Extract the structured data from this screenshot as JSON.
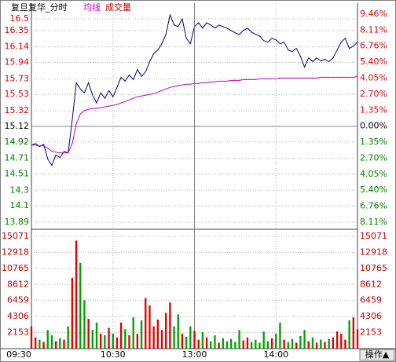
{
  "chart_data": [
    {
      "type": "line",
      "title": "复旦复华_分时",
      "x": [
        "09:30",
        "09:33",
        "09:36",
        "09:39",
        "09:42",
        "09:45",
        "09:48",
        "09:51",
        "09:54",
        "09:57",
        "10:00",
        "10:03",
        "10:06",
        "10:09",
        "10:12",
        "10:15",
        "10:18",
        "10:21",
        "10:24",
        "10:27",
        "10:30",
        "10:33",
        "10:36",
        "10:39",
        "10:42",
        "10:45",
        "10:48",
        "10:51",
        "10:54",
        "10:57",
        "11:00",
        "11:03",
        "11:06",
        "11:09",
        "11:12",
        "11:15",
        "11:18",
        "11:21",
        "11:24",
        "11:27",
        "13:00",
        "13:03",
        "13:06",
        "13:09",
        "13:12",
        "13:15",
        "13:18",
        "13:21",
        "13:24",
        "13:27",
        "13:30",
        "13:33",
        "13:36",
        "13:39",
        "13:42",
        "13:45",
        "13:48",
        "13:51",
        "13:54",
        "13:57",
        "14:00",
        "14:03",
        "14:06",
        "14:09",
        "14:12",
        "14:15",
        "14:18",
        "14:21",
        "14:24",
        "14:27",
        "14:30",
        "14:33",
        "14:36",
        "14:39",
        "14:42",
        "14:45",
        "14:48",
        "14:51",
        "14:54",
        "14:57",
        "15:00"
      ],
      "series": [
        {
          "color": "#000080",
          "values": [
            14.88,
            14.9,
            14.86,
            14.89,
            14.7,
            14.62,
            14.75,
            14.72,
            14.8,
            14.78,
            15.2,
            15.68,
            15.6,
            15.55,
            15.68,
            15.52,
            15.42,
            15.55,
            15.48,
            15.58,
            15.5,
            15.62,
            15.75,
            15.7,
            15.78,
            15.72,
            15.85,
            15.76,
            15.82,
            15.95,
            16.05,
            16.1,
            16.18,
            16.3,
            16.55,
            16.42,
            16.4,
            16.5,
            16.25,
            16.18,
            16.4,
            16.45,
            16.38,
            16.45,
            16.42,
            16.38,
            16.42,
            16.4,
            16.38,
            16.35,
            16.32,
            16.3,
            16.35,
            16.38,
            16.33,
            16.3,
            16.28,
            16.22,
            16.2,
            16.25,
            16.23,
            16.18,
            16.2,
            16.1,
            16.08,
            16.12,
            16.02,
            15.88,
            16.0,
            15.95,
            16.0,
            15.96,
            15.98,
            15.95,
            16.0,
            16.1,
            16.2,
            16.25,
            16.12,
            16.15,
            16.2
          ]
        },
        {
          "name": "均线",
          "color": "#c000c0",
          "values": [
            14.88,
            14.88,
            14.87,
            14.87,
            14.84,
            14.8,
            14.79,
            14.78,
            14.78,
            14.78,
            14.9,
            15.15,
            15.28,
            15.32,
            15.34,
            15.35,
            15.35,
            15.36,
            15.37,
            15.38,
            15.39,
            15.4,
            15.42,
            15.44,
            15.46,
            15.48,
            15.5,
            15.51,
            15.52,
            15.53,
            15.54,
            15.56,
            15.58,
            15.6,
            15.62,
            15.63,
            15.64,
            15.65,
            15.66,
            15.66,
            15.67,
            15.67,
            15.68,
            15.68,
            15.69,
            15.69,
            15.7,
            15.7,
            15.7,
            15.71,
            15.71,
            15.71,
            15.72,
            15.72,
            15.72,
            15.72,
            15.73,
            15.73,
            15.73,
            15.73,
            15.73,
            15.74,
            15.74,
            15.74,
            15.74,
            15.74,
            15.74,
            15.74,
            15.74,
            15.74,
            15.74,
            15.75,
            15.75,
            15.75,
            15.75,
            15.75,
            15.75,
            15.75,
            15.75,
            15.75,
            15.76
          ]
        }
      ],
      "ylim": [
        13.89,
        16.56
      ],
      "yticks": [
        16.5,
        16.35,
        16.14,
        15.94,
        15.73,
        15.53,
        15.32,
        15.12,
        14.92,
        14.71,
        14.51,
        14.3,
        14.1,
        13.89
      ],
      "y2lim": [
        -8.11,
        9.46
      ],
      "y2ticks": [
        {
          "value": 9.46,
          "label": "9.46%"
        },
        {
          "value": 8.11,
          "label": "8.11%"
        },
        {
          "value": 6.76,
          "label": "6.76%"
        },
        {
          "value": 5.4,
          "label": "5.40%"
        },
        {
          "value": 4.05,
          "label": "4.05%"
        },
        {
          "value": 2.7,
          "label": "2.70%"
        },
        {
          "value": 1.35,
          "label": "1.35%"
        },
        {
          "value": 0,
          "label": "0.00%"
        },
        {
          "value": -1.35,
          "label": "1.35%"
        },
        {
          "value": -2.7,
          "label": "2.70%"
        },
        {
          "value": -4.05,
          "label": "4.05%"
        },
        {
          "value": -5.4,
          "label": "5.40%"
        },
        {
          "value": -6.76,
          "label": "6.76%"
        },
        {
          "value": -8.11,
          "label": "8.11%"
        }
      ],
      "grid": true
    },
    {
      "type": "bar",
      "x": [
        "09:30",
        "09:33",
        "09:36",
        "09:39",
        "09:42",
        "09:45",
        "09:48",
        "09:51",
        "09:54",
        "09:57",
        "10:00",
        "10:03",
        "10:06",
        "10:09",
        "10:12",
        "10:15",
        "10:18",
        "10:21",
        "10:24",
        "10:27",
        "10:30",
        "10:33",
        "10:36",
        "10:39",
        "10:42",
        "10:45",
        "10:48",
        "10:51",
        "10:54",
        "10:57",
        "11:00",
        "11:03",
        "11:06",
        "11:09",
        "11:12",
        "11:15",
        "11:18",
        "11:21",
        "11:24",
        "11:27",
        "13:00",
        "13:03",
        "13:06",
        "13:09",
        "13:12",
        "13:15",
        "13:18",
        "13:21",
        "13:24",
        "13:27",
        "13:30",
        "13:33",
        "13:36",
        "13:39",
        "13:42",
        "13:45",
        "13:48",
        "13:51",
        "13:54",
        "13:57",
        "14:00",
        "14:03",
        "14:06",
        "14:09",
        "14:12",
        "14:15",
        "14:18",
        "14:21",
        "14:24",
        "14:27",
        "14:30",
        "14:33",
        "14:36",
        "14:39",
        "14:42",
        "14:45",
        "14:48",
        "14:51",
        "14:54",
        "14:57",
        "15:00"
      ],
      "series": [
        {
          "name": "成交量",
          "color": "#c00000",
          "values": [
            3000,
            1500,
            1200,
            900,
            2500,
            1800,
            1000,
            1400,
            1200,
            3000,
            9500,
            14500,
            11500,
            6500,
            4000,
            2500,
            3500,
            2000,
            1800,
            2800,
            2000,
            1500,
            3500,
            2600,
            1800,
            4200,
            2000,
            3800,
            6800,
            5800,
            3000,
            3900,
            2500,
            4800,
            6200,
            3000,
            4600,
            2000,
            1600,
            3000,
            2400,
            1200,
            2200,
            1500,
            1000,
            1800,
            800,
            1400,
            1000,
            1300,
            900,
            2500,
            1100,
            1500,
            900,
            1200,
            800,
            2300,
            1000,
            1400,
            2000,
            3500,
            1200,
            900,
            1300,
            800,
            1700,
            2500,
            1000,
            1500,
            800,
            1200,
            900,
            1300,
            1500,
            2300,
            2000,
            1200,
            3800,
            4200,
            2600
          ]
        }
      ],
      "up_color": "#e00000",
      "down_color": "#00a000",
      "ylim": [
        0,
        15071
      ],
      "yticks": [
        15071,
        12918,
        10765,
        8612,
        6459,
        4306,
        2153
      ],
      "xticks": [
        "09:30",
        "10:30",
        "13:00",
        "14:00"
      ],
      "grid": true
    }
  ],
  "button_label": "操作▲"
}
